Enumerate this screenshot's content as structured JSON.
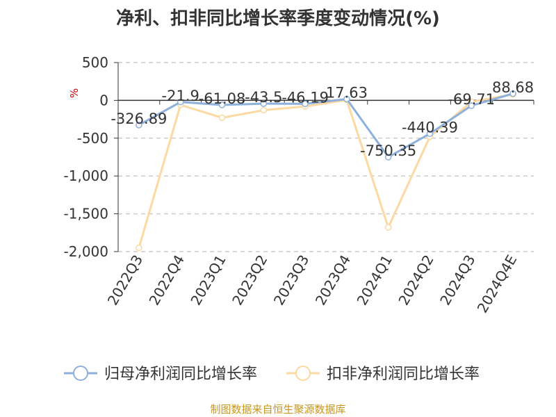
{
  "chart_data": {
    "type": "line",
    "title": "净利、扣非同比增长率季度变动情况(%)",
    "ylabel": "%",
    "categories": [
      "2022Q3",
      "2022Q4",
      "2023Q1",
      "2023Q2",
      "2023Q3",
      "2023Q4",
      "2024Q1",
      "2024Q2",
      "2024Q3",
      "2024Q4E"
    ],
    "ylim": [
      -2000,
      500
    ],
    "yticks": [
      500,
      0,
      -500,
      -1000,
      -1500,
      -2000
    ],
    "ytick_labels": [
      "500",
      "0",
      "-500",
      "-1,000",
      "-1,500",
      "-2,000"
    ],
    "grid": "horizontal dashed",
    "legend_position": "bottom",
    "series": [
      {
        "name": "归母净利润同比增长率",
        "color": "#8eb0dc",
        "values": [
          -326.89,
          -21.9,
          -61.08,
          -43.5,
          -46.19,
          17.63,
          -750.35,
          -440.39,
          -69.71,
          88.68
        ],
        "labels": [
          "-326.89",
          "-21.9",
          "-61.08",
          "-43.5",
          "-46.19",
          "17.63",
          "-750.35",
          "-440.39",
          "-69.71",
          "88.68"
        ]
      },
      {
        "name": "扣非净利润同比增长率",
        "color": "#fbd9a0",
        "values": [
          -1950,
          -60,
          -230,
          -130,
          -80,
          5,
          -1680,
          -480,
          -20,
          80
        ]
      }
    ],
    "source": "制图数据来自恒生聚源数据库"
  }
}
